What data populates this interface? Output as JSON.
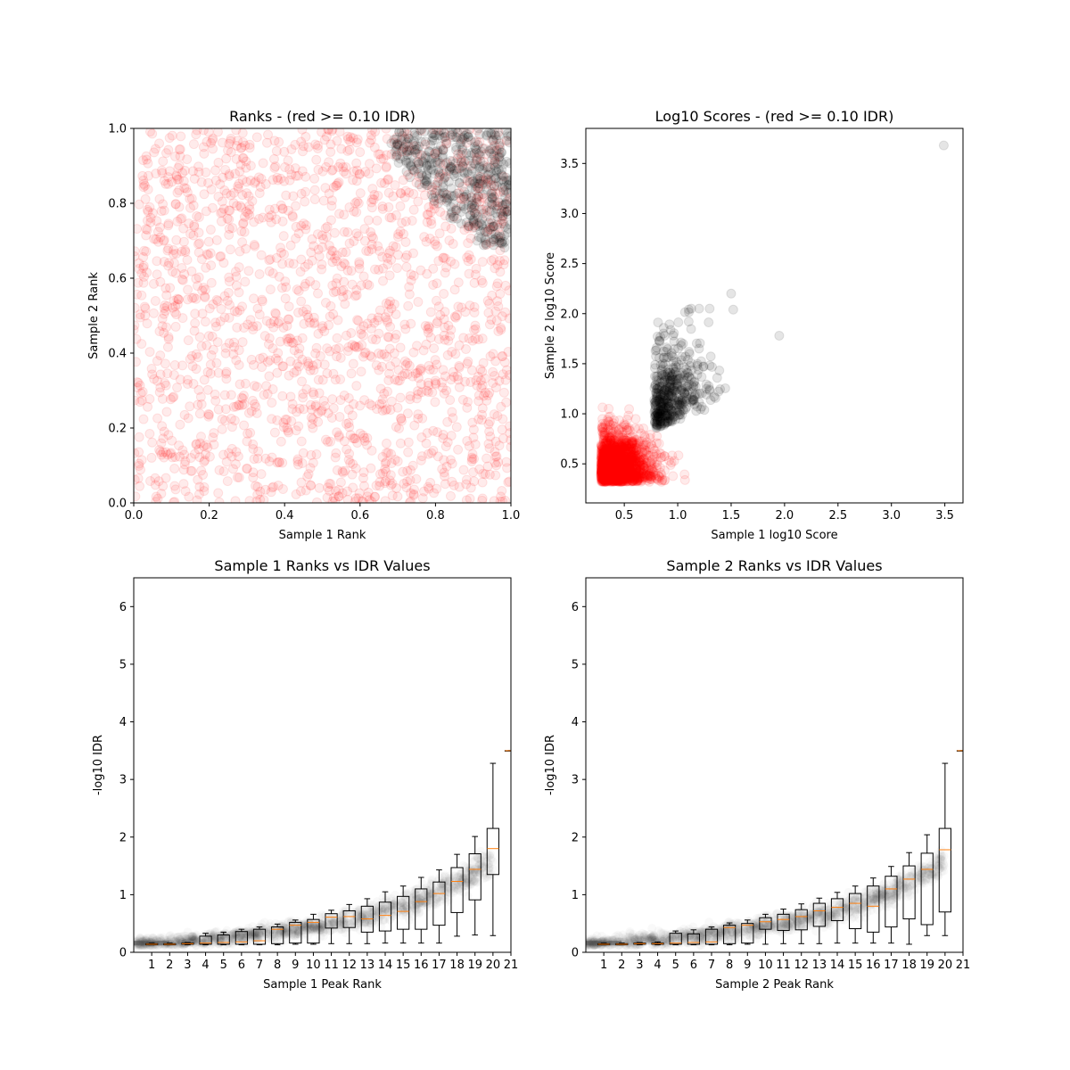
{
  "chart_data": [
    {
      "type": "scatter",
      "title": "Ranks - (red >= 0.10 IDR)",
      "xlabel": "Sample 1 Rank",
      "ylabel": "Sample 2 Rank",
      "xlim": [
        0,
        1
      ],
      "ylim": [
        0,
        1
      ],
      "xticks": [
        "0.0",
        "0.2",
        "0.4",
        "0.6",
        "0.8",
        "1.0"
      ],
      "yticks": [
        "0.0",
        "0.2",
        "0.4",
        "0.6",
        "0.8",
        "1.0"
      ],
      "grid": false,
      "series": [
        {
          "color": "#ff0000",
          "points_desc": "uniform cloud over whole [0,1]x[0,1] square, alpha 0.1",
          "approx_count": 1800
        },
        {
          "color": "#000000",
          "points_desc": "cluster in upper-right corner, x>0.68 and y>0.68, alpha 0.1",
          "approx_count": 450
        }
      ]
    },
    {
      "type": "scatter",
      "title": "Log10 Scores - (red >= 0.10 IDR)",
      "xlabel": "Sample 1 log10 Score",
      "ylabel": "Sample 2 log10 Score",
      "xlim": [
        0.14,
        3.67
      ],
      "ylim": [
        0.11,
        3.85
      ],
      "xticks": [
        "0.5",
        "1.0",
        "1.5",
        "2.0",
        "2.5",
        "3.0",
        "3.5"
      ],
      "yticks": [
        "0.5",
        "1.0",
        "1.5",
        "2.0",
        "2.5",
        "3.0",
        "3.5"
      ],
      "grid": false,
      "series": [
        {
          "color": "#ff0000",
          "points_desc": "dense cluster x 0.28-1.25, y 0.32-1.95, densest near (0.4,0.4)",
          "approx_count": 1800
        },
        {
          "color": "#000000",
          "points_desc": "cluster x 0.75-1.55, y 0.8-2.2",
          "approx_count": 450
        },
        {
          "color": "#000000",
          "points": [
            [
              1.95,
              1.78
            ],
            [
              3.49,
              3.68
            ],
            [
              1.52,
              2.04
            ],
            [
              1.5,
              2.2
            ]
          ]
        }
      ]
    },
    {
      "type": "box",
      "title": "Sample 1 Ranks vs IDR Values",
      "xlabel": "Sample 1 Peak Rank",
      "ylabel": "-log10 IDR",
      "xlim": [
        0,
        21
      ],
      "ylim": [
        0,
        6.5
      ],
      "xticks": [
        "1",
        "2",
        "3",
        "4",
        "5",
        "6",
        "7",
        "8",
        "9",
        "10",
        "11",
        "12",
        "13",
        "14",
        "15",
        "16",
        "17",
        "18",
        "19",
        "20",
        "21"
      ],
      "yticks": [
        "0",
        "1",
        "2",
        "3",
        "4",
        "5",
        "6"
      ],
      "background_scatter": "grey curve of -log10 IDR rising from ~0.15 at rank 0 to ~3.5 at rank 20",
      "boxes": [
        {
          "pos": 1,
          "whislo": 0.13,
          "q1": 0.13,
          "med": 0.14,
          "q3": 0.15,
          "whishi": 0.16
        },
        {
          "pos": 2,
          "whislo": 0.13,
          "q1": 0.13,
          "med": 0.14,
          "q3": 0.15,
          "whishi": 0.16
        },
        {
          "pos": 3,
          "whislo": 0.13,
          "q1": 0.14,
          "med": 0.15,
          "q3": 0.16,
          "whishi": 0.17
        },
        {
          "pos": 4,
          "whislo": 0.13,
          "q1": 0.14,
          "med": 0.16,
          "q3": 0.28,
          "whishi": 0.33
        },
        {
          "pos": 5,
          "whislo": 0.13,
          "q1": 0.14,
          "med": 0.17,
          "q3": 0.3,
          "whishi": 0.35
        },
        {
          "pos": 6,
          "whislo": 0.13,
          "q1": 0.14,
          "med": 0.18,
          "q3": 0.36,
          "whishi": 0.4
        },
        {
          "pos": 7,
          "whislo": 0.13,
          "q1": 0.14,
          "med": 0.2,
          "q3": 0.4,
          "whishi": 0.44
        },
        {
          "pos": 8,
          "whislo": 0.13,
          "q1": 0.15,
          "med": 0.4,
          "q3": 0.44,
          "whishi": 0.49
        },
        {
          "pos": 9,
          "whislo": 0.14,
          "q1": 0.16,
          "med": 0.47,
          "q3": 0.52,
          "whishi": 0.56
        },
        {
          "pos": 10,
          "whislo": 0.14,
          "q1": 0.16,
          "med": 0.52,
          "q3": 0.57,
          "whishi": 0.66
        },
        {
          "pos": 11,
          "whislo": 0.15,
          "q1": 0.42,
          "med": 0.61,
          "q3": 0.67,
          "whishi": 0.73
        },
        {
          "pos": 12,
          "whislo": 0.15,
          "q1": 0.43,
          "med": 0.62,
          "q3": 0.72,
          "whishi": 0.83
        },
        {
          "pos": 13,
          "whislo": 0.15,
          "q1": 0.35,
          "med": 0.58,
          "q3": 0.8,
          "whishi": 0.93
        },
        {
          "pos": 14,
          "whislo": 0.16,
          "q1": 0.37,
          "med": 0.64,
          "q3": 0.87,
          "whishi": 1.05
        },
        {
          "pos": 15,
          "whislo": 0.16,
          "q1": 0.4,
          "med": 0.71,
          "q3": 0.97,
          "whishi": 1.15
        },
        {
          "pos": 16,
          "whislo": 0.16,
          "q1": 0.4,
          "med": 0.88,
          "q3": 1.1,
          "whishi": 1.3
        },
        {
          "pos": 17,
          "whislo": 0.16,
          "q1": 0.47,
          "med": 1.02,
          "q3": 1.22,
          "whishi": 1.43
        },
        {
          "pos": 18,
          "whislo": 0.28,
          "q1": 0.69,
          "med": 1.23,
          "q3": 1.47,
          "whishi": 1.7
        },
        {
          "pos": 19,
          "whislo": 0.3,
          "q1": 0.91,
          "med": 1.44,
          "q3": 1.71,
          "whishi": 2.01
        },
        {
          "pos": 20,
          "whislo": 0.29,
          "q1": 1.35,
          "med": 1.8,
          "q3": 2.15,
          "whishi": 3.28
        },
        {
          "pos": 21,
          "whislo": 3.5,
          "q1": 3.5,
          "med": 3.5,
          "q3": 3.5,
          "whishi": 3.5
        }
      ]
    },
    {
      "type": "box",
      "title": "Sample 2 Ranks vs IDR Values",
      "xlabel": "Sample 2 Peak Rank",
      "ylabel": "-log10 IDR",
      "xlim": [
        0,
        21
      ],
      "ylim": [
        0,
        6.5
      ],
      "xticks": [
        "1",
        "2",
        "3",
        "4",
        "5",
        "6",
        "7",
        "8",
        "9",
        "10",
        "11",
        "12",
        "13",
        "14",
        "15",
        "16",
        "17",
        "18",
        "19",
        "20",
        "21"
      ],
      "yticks": [
        "0",
        "1",
        "2",
        "3",
        "4",
        "5",
        "6"
      ],
      "background_scatter": "grey curve of -log10 IDR rising from ~0.15 at rank 0 to ~3.5 at rank 20",
      "boxes": [
        {
          "pos": 1,
          "whislo": 0.13,
          "q1": 0.13,
          "med": 0.14,
          "q3": 0.15,
          "whishi": 0.16
        },
        {
          "pos": 2,
          "whislo": 0.13,
          "q1": 0.13,
          "med": 0.14,
          "q3": 0.15,
          "whishi": 0.16
        },
        {
          "pos": 3,
          "whislo": 0.13,
          "q1": 0.14,
          "med": 0.15,
          "q3": 0.16,
          "whishi": 0.17
        },
        {
          "pos": 4,
          "whislo": 0.13,
          "q1": 0.14,
          "med": 0.15,
          "q3": 0.16,
          "whishi": 0.18
        },
        {
          "pos": 5,
          "whislo": 0.13,
          "q1": 0.14,
          "med": 0.16,
          "q3": 0.33,
          "whishi": 0.37
        },
        {
          "pos": 6,
          "whislo": 0.13,
          "q1": 0.14,
          "med": 0.17,
          "q3": 0.32,
          "whishi": 0.39
        },
        {
          "pos": 7,
          "whislo": 0.13,
          "q1": 0.14,
          "med": 0.18,
          "q3": 0.4,
          "whishi": 0.44
        },
        {
          "pos": 8,
          "whislo": 0.13,
          "q1": 0.15,
          "med": 0.43,
          "q3": 0.47,
          "whishi": 0.51
        },
        {
          "pos": 9,
          "whislo": 0.14,
          "q1": 0.16,
          "med": 0.47,
          "q3": 0.5,
          "whishi": 0.56
        },
        {
          "pos": 10,
          "whislo": 0.14,
          "q1": 0.4,
          "med": 0.53,
          "q3": 0.6,
          "whishi": 0.66
        },
        {
          "pos": 11,
          "whislo": 0.15,
          "q1": 0.38,
          "med": 0.57,
          "q3": 0.66,
          "whishi": 0.75
        },
        {
          "pos": 12,
          "whislo": 0.15,
          "q1": 0.39,
          "med": 0.62,
          "q3": 0.74,
          "whishi": 0.84
        },
        {
          "pos": 13,
          "whislo": 0.15,
          "q1": 0.45,
          "med": 0.72,
          "q3": 0.85,
          "whishi": 0.94
        },
        {
          "pos": 14,
          "whislo": 0.16,
          "q1": 0.55,
          "med": 0.78,
          "q3": 0.93,
          "whishi": 1.04
        },
        {
          "pos": 15,
          "whislo": 0.16,
          "q1": 0.41,
          "med": 0.85,
          "q3": 1.02,
          "whishi": 1.15
        },
        {
          "pos": 16,
          "whislo": 0.16,
          "q1": 0.35,
          "med": 0.8,
          "q3": 1.15,
          "whishi": 1.29
        },
        {
          "pos": 17,
          "whislo": 0.16,
          "q1": 0.44,
          "med": 1.1,
          "q3": 1.32,
          "whishi": 1.49
        },
        {
          "pos": 18,
          "whislo": 0.14,
          "q1": 0.58,
          "med": 1.27,
          "q3": 1.5,
          "whishi": 1.73
        },
        {
          "pos": 19,
          "whislo": 0.29,
          "q1": 0.48,
          "med": 1.44,
          "q3": 1.72,
          "whishi": 2.04
        },
        {
          "pos": 20,
          "whislo": 0.29,
          "q1": 0.7,
          "med": 1.78,
          "q3": 2.15,
          "whishi": 3.28
        },
        {
          "pos": 21,
          "whislo": 3.5,
          "q1": 3.5,
          "med": 3.5,
          "q3": 3.5,
          "whishi": 3.5
        }
      ]
    }
  ]
}
